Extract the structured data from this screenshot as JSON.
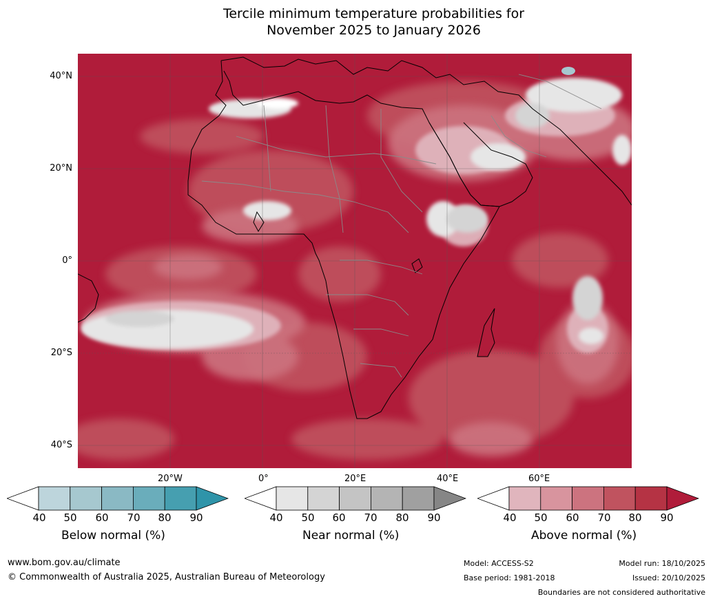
{
  "title": {
    "line1": "Tercile minimum temperature probabilities for",
    "line2": "November 2025 to January 2026"
  },
  "map": {
    "lat_labels": [
      "40°N",
      "20°N",
      "0°",
      "20°S",
      "40°S"
    ],
    "lon_labels": [
      "20°W",
      "0°",
      "20°E",
      "40°E",
      "60°E"
    ]
  },
  "legends": [
    {
      "title": "Below normal (%)",
      "ticks": [
        "40",
        "50",
        "60",
        "70",
        "80",
        "90"
      ],
      "colors": [
        "#ffffff",
        "#bdd5dc",
        "#a6c8cf",
        "#8ab9c4",
        "#6aadbb",
        "#469fb0",
        "#2f94a9"
      ]
    },
    {
      "title": "Near normal (%)",
      "ticks": [
        "40",
        "50",
        "60",
        "70",
        "80",
        "90"
      ],
      "colors": [
        "#ffffff",
        "#e6e6e6",
        "#d4d4d4",
        "#c4c4c4",
        "#b4b4b4",
        "#a0a0a0",
        "#868686"
      ]
    },
    {
      "title": "Above normal (%)",
      "ticks": [
        "40",
        "50",
        "60",
        "70",
        "80",
        "90"
      ],
      "colors": [
        "#ffffff",
        "#e0b5bd",
        "#d8949e",
        "#cc737f",
        "#c0535f",
        "#b53344",
        "#b01c3a"
      ]
    }
  ],
  "footer": {
    "website": "www.bom.gov.au/climate",
    "copyright": "© Commonwealth of Australia 2025, Australian Bureau of Meteorology",
    "model": "Model: ACCESS-S2",
    "base_period": "Base period: 1981-2018",
    "model_run": "Model run: 18/10/2025",
    "issued": "Issued: 20/10/2025",
    "disclaimer": "Boundaries are not considered authoritative"
  }
}
